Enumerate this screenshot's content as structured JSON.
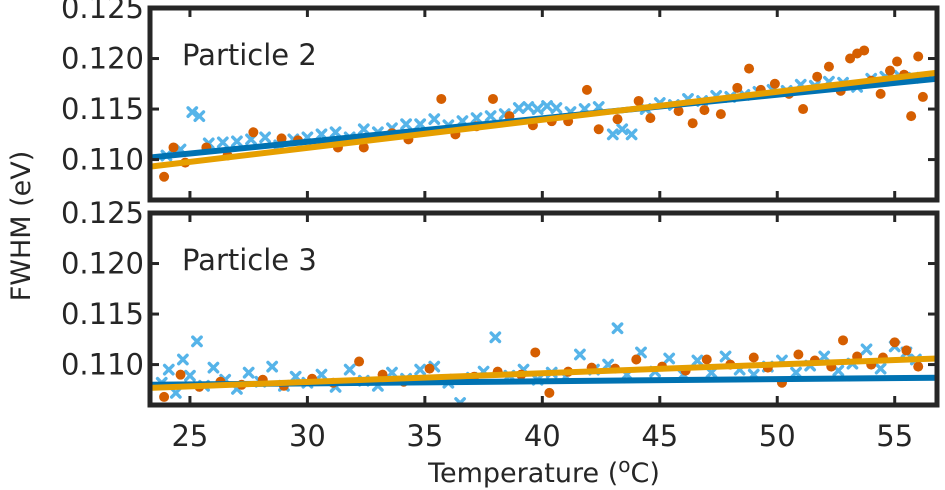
{
  "figure": {
    "xlabel": "Temperature (",
    "xlabel_sup": "o",
    "xlabel_end": "C)",
    "ylabel": "FWHM (eV)",
    "colors": {
      "series_cross": "#56b4e9",
      "series_dot": "#d55e00",
      "fit_cross": "#0072b2",
      "fit_dot": "#e69f00",
      "axes": "#262626"
    }
  },
  "chart_data": [
    {
      "type": "scatter",
      "title": "Particle 2",
      "xlim": [
        23.3,
        56.8
      ],
      "ylim": [
        0.106,
        0.125
      ],
      "xticks": [
        25,
        30,
        35,
        40,
        45,
        50,
        55
      ],
      "xtick_labels": [
        "25",
        "30",
        "35",
        "40",
        "45",
        "50",
        "55"
      ],
      "yticks": [
        0.11,
        0.115,
        0.12,
        0.125
      ],
      "ytick_labels": [
        "0.110",
        "0.115",
        "0.120",
        "0.125"
      ],
      "series": [
        {
          "marker": "cross",
          "color": "#56b4e9",
          "points": [
            [
              24,
              0.1104
            ],
            [
              24.6,
              0.111
            ],
            [
              25.1,
              0.1147
            ],
            [
              25.4,
              0.1143
            ],
            [
              25.8,
              0.1116
            ],
            [
              26.4,
              0.1117
            ],
            [
              27,
              0.1118
            ],
            [
              27.6,
              0.112
            ],
            [
              28.2,
              0.1122
            ],
            [
              28.8,
              0.1114
            ],
            [
              29.4,
              0.112
            ],
            [
              30,
              0.1122
            ],
            [
              30.6,
              0.1125
            ],
            [
              31.2,
              0.1127
            ],
            [
              31.8,
              0.1122
            ],
            [
              32.4,
              0.113
            ],
            [
              33,
              0.1127
            ],
            [
              33.6,
              0.1131
            ],
            [
              34.2,
              0.1135
            ],
            [
              34.8,
              0.1135
            ],
            [
              35.4,
              0.114
            ],
            [
              36,
              0.1134
            ],
            [
              36.6,
              0.1138
            ],
            [
              37.2,
              0.1141
            ],
            [
              37.8,
              0.1143
            ],
            [
              38.4,
              0.1145
            ],
            [
              39,
              0.1151
            ],
            [
              39.4,
              0.1152
            ],
            [
              39.8,
              0.115
            ],
            [
              40.2,
              0.1153
            ],
            [
              40.6,
              0.1151
            ],
            [
              41.2,
              0.1147
            ],
            [
              41.8,
              0.115
            ],
            [
              42.4,
              0.1152
            ],
            [
              43,
              0.1125
            ],
            [
              43.4,
              0.113
            ],
            [
              43.8,
              0.1125
            ],
            [
              44.4,
              0.115
            ],
            [
              45,
              0.1156
            ],
            [
              45.6,
              0.1154
            ],
            [
              46.2,
              0.116
            ],
            [
              46.8,
              0.1158
            ],
            [
              47.4,
              0.1163
            ],
            [
              48,
              0.1162
            ],
            [
              48.6,
              0.1164
            ],
            [
              49.2,
              0.1167
            ],
            [
              49.8,
              0.1169
            ],
            [
              50.4,
              0.1168
            ],
            [
              51,
              0.1174
            ],
            [
              51.6,
              0.1173
            ],
            [
              52.2,
              0.1177
            ],
            [
              52.8,
              0.1176
            ],
            [
              53.4,
              0.1172
            ],
            [
              54,
              0.118
            ],
            [
              54.6,
              0.1182
            ],
            [
              55.2,
              0.1183
            ],
            [
              55.8,
              0.1181
            ]
          ]
        },
        {
          "marker": "dot",
          "color": "#d55e00",
          "points": [
            [
              23.9,
              0.1083
            ],
            [
              24.3,
              0.1112
            ],
            [
              24.8,
              0.1097
            ],
            [
              25.7,
              0.1112
            ],
            [
              26.6,
              0.1104
            ],
            [
              27.7,
              0.1127
            ],
            [
              28.9,
              0.1121
            ],
            [
              29.6,
              0.1119
            ],
            [
              31.3,
              0.1112
            ],
            [
              32.4,
              0.1112
            ],
            [
              33.6,
              0.1126
            ],
            [
              34.3,
              0.112
            ],
            [
              35.7,
              0.116
            ],
            [
              36.3,
              0.1125
            ],
            [
              37.2,
              0.1133
            ],
            [
              37.9,
              0.116
            ],
            [
              38.6,
              0.1143
            ],
            [
              39.6,
              0.1134
            ],
            [
              40.4,
              0.1138
            ],
            [
              41.1,
              0.1138
            ],
            [
              41.9,
              0.1169
            ],
            [
              42.4,
              0.113
            ],
            [
              43.2,
              0.114
            ],
            [
              44.1,
              0.1158
            ],
            [
              44.6,
              0.1141
            ],
            [
              45.8,
              0.1148
            ],
            [
              46.4,
              0.1136
            ],
            [
              46.9,
              0.1149
            ],
            [
              47.6,
              0.1145
            ],
            [
              48.3,
              0.1171
            ],
            [
              48.8,
              0.119
            ],
            [
              49.3,
              0.1169
            ],
            [
              49.9,
              0.1175
            ],
            [
              50.5,
              0.1165
            ],
            [
              51.1,
              0.115
            ],
            [
              51.7,
              0.1182
            ],
            [
              52.2,
              0.1192
            ],
            [
              52.7,
              0.1168
            ],
            [
              53.1,
              0.12
            ],
            [
              53.4,
              0.1205
            ],
            [
              53.7,
              0.1208
            ],
            [
              54.0,
              0.1178
            ],
            [
              54.4,
              0.1165
            ],
            [
              54.8,
              0.1188
            ],
            [
              55.1,
              0.1197
            ],
            [
              55.4,
              0.1184
            ],
            [
              55.7,
              0.1143
            ],
            [
              56.0,
              0.1202
            ],
            [
              56.2,
              0.1162
            ]
          ]
        }
      ],
      "fits": [
        {
          "color": "#0072b2",
          "x": [
            23.3,
            56.8
          ],
          "y": [
            0.1102,
            0.118
          ]
        },
        {
          "color": "#e69f00",
          "x": [
            23.3,
            56.8
          ],
          "y": [
            0.1093,
            0.1186
          ]
        }
      ]
    },
    {
      "type": "scatter",
      "title": "Particle 3",
      "xlim": [
        23.3,
        56.8
      ],
      "ylim": [
        0.106,
        0.125
      ],
      "xticks": [
        25,
        30,
        35,
        40,
        45,
        50,
        55
      ],
      "xtick_labels": [
        "25",
        "30",
        "35",
        "40",
        "45",
        "50",
        "55"
      ],
      "yticks": [
        0.11,
        0.115,
        0.12,
        0.125
      ],
      "ytick_labels": [
        "0.110",
        "0.115",
        "0.120",
        "0.125"
      ],
      "series": [
        {
          "marker": "cross",
          "color": "#56b4e9",
          "points": [
            [
              23.8,
              0.1082
            ],
            [
              24.1,
              0.1095
            ],
            [
              24.4,
              0.1072
            ],
            [
              24.7,
              0.1105
            ],
            [
              25,
              0.1089
            ],
            [
              25.3,
              0.1123
            ],
            [
              25.6,
              0.1079
            ],
            [
              26,
              0.1097
            ],
            [
              26.5,
              0.1085
            ],
            [
              27,
              0.1076
            ],
            [
              27.5,
              0.1092
            ],
            [
              28,
              0.1083
            ],
            [
              28.5,
              0.1098
            ],
            [
              29,
              0.1079
            ],
            [
              29.5,
              0.1088
            ],
            [
              30,
              0.1082
            ],
            [
              30.6,
              0.109
            ],
            [
              31.2,
              0.1078
            ],
            [
              31.8,
              0.1095
            ],
            [
              32.4,
              0.1084
            ],
            [
              33,
              0.1079
            ],
            [
              33.6,
              0.1092
            ],
            [
              34.2,
              0.1086
            ],
            [
              34.8,
              0.1095
            ],
            [
              35.4,
              0.1098
            ],
            [
              36,
              0.1082
            ],
            [
              36.5,
              0.1062
            ],
            [
              37,
              0.1087
            ],
            [
              37.5,
              0.1093
            ],
            [
              38,
              0.1127
            ],
            [
              38.6,
              0.1089
            ],
            [
              39.2,
              0.1095
            ],
            [
              39.8,
              0.1085
            ],
            [
              40.4,
              0.1092
            ],
            [
              41,
              0.1088
            ],
            [
              41.6,
              0.111
            ],
            [
              42.2,
              0.1095
            ],
            [
              42.8,
              0.11
            ],
            [
              43.2,
              0.1136
            ],
            [
              43.6,
              0.109
            ],
            [
              44.2,
              0.1112
            ],
            [
              44.8,
              0.1093
            ],
            [
              45.4,
              0.1106
            ],
            [
              46,
              0.109
            ],
            [
              46.6,
              0.1104
            ],
            [
              47.2,
              0.1092
            ],
            [
              47.8,
              0.1108
            ],
            [
              48.4,
              0.1095
            ],
            [
              49,
              0.109
            ],
            [
              49.6,
              0.1098
            ],
            [
              50.2,
              0.1104
            ],
            [
              50.8,
              0.1092
            ],
            [
              51.4,
              0.1099
            ],
            [
              52,
              0.1108
            ],
            [
              52.6,
              0.1094
            ],
            [
              53.2,
              0.1101
            ],
            [
              53.8,
              0.1115
            ],
            [
              54.4,
              0.1096
            ],
            [
              55,
              0.1118
            ],
            [
              55.5,
              0.1112
            ],
            [
              55.9,
              0.1105
            ]
          ]
        },
        {
          "marker": "dot",
          "color": "#d55e00",
          "points": [
            [
              23.9,
              0.1068
            ],
            [
              24.6,
              0.109
            ],
            [
              25.4,
              0.1078
            ],
            [
              26.3,
              0.1083
            ],
            [
              27.2,
              0.108
            ],
            [
              28.1,
              0.1085
            ],
            [
              29,
              0.1079
            ],
            [
              30.2,
              0.1086
            ],
            [
              31.1,
              0.1082
            ],
            [
              32.2,
              0.1103
            ],
            [
              33.2,
              0.109
            ],
            [
              34.1,
              0.1083
            ],
            [
              35.2,
              0.1096
            ],
            [
              36.1,
              0.1086
            ],
            [
              37.1,
              0.1088
            ],
            [
              38.1,
              0.1093
            ],
            [
              39.1,
              0.109
            ],
            [
              39.7,
              0.1112
            ],
            [
              40.3,
              0.1072
            ],
            [
              41.1,
              0.1093
            ],
            [
              42.1,
              0.1097
            ],
            [
              43.1,
              0.1096
            ],
            [
              44,
              0.1105
            ],
            [
              45.1,
              0.1098
            ],
            [
              46.1,
              0.1094
            ],
            [
              47,
              0.1105
            ],
            [
              48,
              0.11
            ],
            [
              49,
              0.1107
            ],
            [
              49.6,
              0.1097
            ],
            [
              50.2,
              0.1082
            ],
            [
              50.9,
              0.111
            ],
            [
              51.6,
              0.1104
            ],
            [
              52.3,
              0.1098
            ],
            [
              52.8,
              0.1124
            ],
            [
              53.4,
              0.1108
            ],
            [
              54,
              0.11
            ],
            [
              54.5,
              0.1107
            ],
            [
              55,
              0.1122
            ],
            [
              55.5,
              0.1114
            ],
            [
              56,
              0.1098
            ]
          ]
        }
      ],
      "fits": [
        {
          "color": "#0072b2",
          "x": [
            23.3,
            56.8
          ],
          "y": [
            0.108,
            0.1087
          ]
        },
        {
          "color": "#e69f00",
          "x": [
            23.3,
            56.8
          ],
          "y": [
            0.1077,
            0.1106
          ]
        }
      ]
    }
  ]
}
